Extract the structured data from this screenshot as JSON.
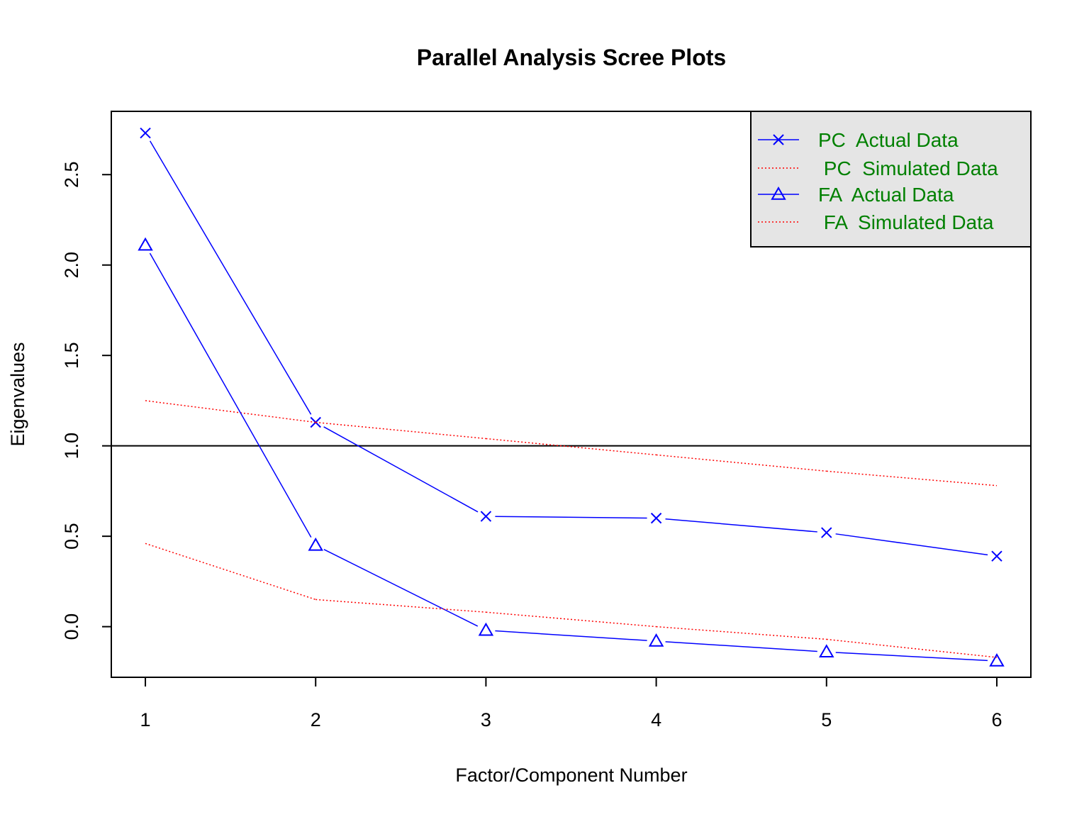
{
  "chart_data": {
    "type": "line",
    "title": "Parallel Analysis Scree Plots",
    "xlabel": "Factor/Component Number",
    "ylabel": "Eigenvalues",
    "x": [
      1,
      2,
      3,
      4,
      5,
      6
    ],
    "xlim": [
      0.8,
      6.2
    ],
    "ylim": [
      -0.28,
      2.85
    ],
    "xticks": [
      "1",
      "2",
      "3",
      "4",
      "5",
      "6"
    ],
    "yticks": [
      "0.0",
      "0.5",
      "1.0",
      "1.5",
      "2.0",
      "2.5"
    ],
    "reference_line": 1.0,
    "legend_position": "top-right",
    "legend_background": "#e5e5e5",
    "legend_text_color": "#008000",
    "series": [
      {
        "name": "PC  Actual Data",
        "legend_label": "PC  Actual Data",
        "values": [
          2.73,
          1.13,
          0.61,
          0.6,
          0.52,
          0.39
        ],
        "color": "#0000ff",
        "line": "solid",
        "marker": "x"
      },
      {
        "name": "PC  Simulated Data",
        "legend_label": " PC  Simulated Data",
        "values": [
          1.25,
          1.13,
          1.04,
          0.95,
          0.86,
          0.78
        ],
        "color": "#ff0000",
        "line": "dotted",
        "marker": "none"
      },
      {
        "name": "FA  Actual Data",
        "legend_label": "FA  Actual Data",
        "values": [
          2.11,
          0.45,
          -0.02,
          -0.08,
          -0.14,
          -0.19
        ],
        "color": "#0000ff",
        "line": "solid",
        "marker": "triangle"
      },
      {
        "name": "FA  Simulated Data",
        "legend_label": " FA  Simulated Data",
        "values": [
          0.46,
          0.15,
          0.08,
          0.0,
          -0.07,
          -0.17
        ],
        "color": "#ff0000",
        "line": "dotted",
        "marker": "none"
      }
    ]
  }
}
